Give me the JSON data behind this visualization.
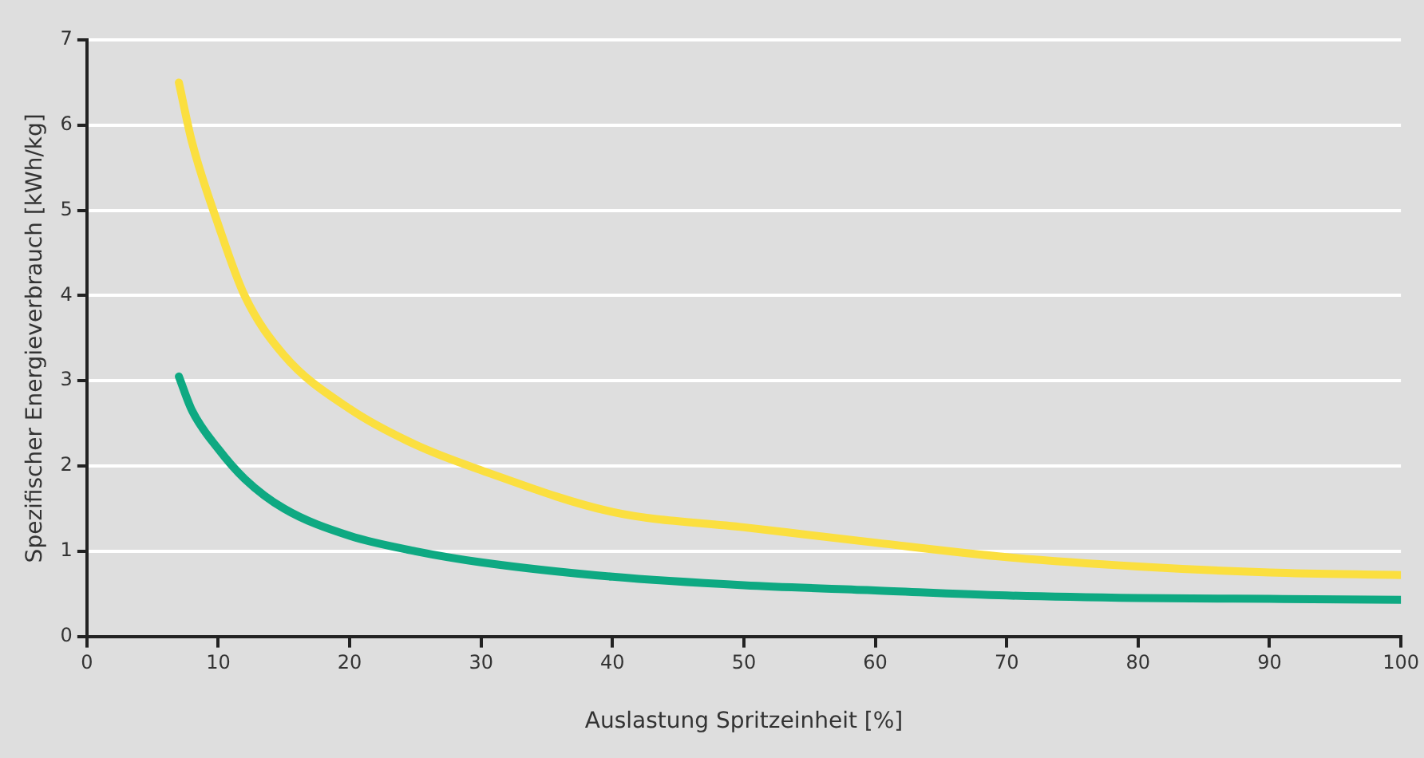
{
  "chart_data": {
    "type": "line",
    "xlabel": "Auslastung Spritzeinheit [%]",
    "ylabel": "Spezifischer Energieverbrauch [kWh/kg]",
    "x": [
      7,
      8,
      10,
      12,
      15,
      20,
      25,
      30,
      40,
      50,
      60,
      70,
      80,
      90,
      100
    ],
    "series": [
      {
        "color": "#fbdf3f",
        "values": [
          6.5,
          5.8,
          4.83,
          4.0,
          3.3,
          2.67,
          2.25,
          1.95,
          1.46,
          1.28,
          1.1,
          0.93,
          0.82,
          0.75,
          0.72
        ]
      },
      {
        "color": "#0ea982",
        "values": [
          3.05,
          2.65,
          2.2,
          1.85,
          1.5,
          1.18,
          1.0,
          0.87,
          0.7,
          0.6,
          0.54,
          0.48,
          0.45,
          0.44,
          0.43
        ]
      }
    ],
    "xlim": [
      0,
      100
    ],
    "xticks": [
      0,
      10,
      20,
      30,
      40,
      50,
      60,
      70,
      80,
      90,
      100
    ],
    "ylim": [
      0,
      7
    ],
    "yticks": [
      0,
      1,
      2,
      3,
      4,
      5,
      6,
      7
    ],
    "grid": "y",
    "legend": false,
    "marker": "none",
    "line_style": "solid"
  }
}
